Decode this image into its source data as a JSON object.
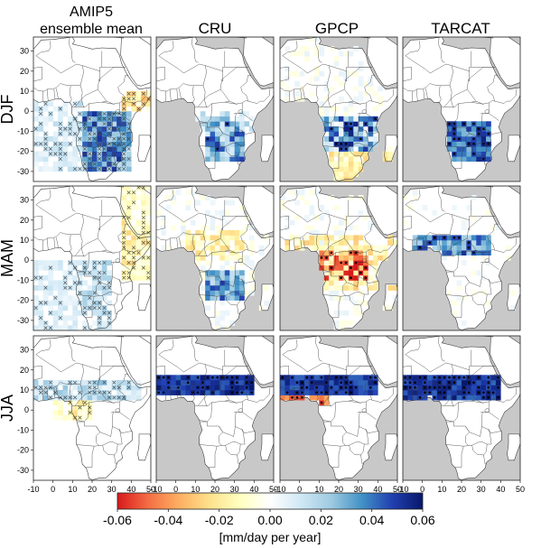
{
  "chart_data": {
    "type": "heatmap",
    "columns": [
      "AMIP5\nensemble mean",
      "CRU",
      "GPCP",
      "TARCAT"
    ],
    "column_titles": [
      {
        "line1": "AMIP5",
        "line2": "ensemble mean"
      },
      {
        "line1": "CRU",
        "line2": ""
      },
      {
        "line1": "GPCP",
        "line2": ""
      },
      {
        "line1": "TARCAT",
        "line2": ""
      }
    ],
    "rows": [
      "DJF",
      "MAM",
      "JJA"
    ],
    "x_ticks": [
      "-10",
      "0",
      "10",
      "20",
      "30",
      "40",
      "50"
    ],
    "y_ticks": [
      "30",
      "20",
      "10",
      "0",
      "-10",
      "-20",
      "-30"
    ],
    "xlim": [
      -10,
      50
    ],
    "ylim": [
      -35,
      37
    ],
    "colorbar": {
      "ticks": [
        "-0.06",
        "-0.04",
        "-0.02",
        "0.00",
        "0.02",
        "0.04",
        "0.06"
      ],
      "range": [
        -0.06,
        0.06
      ],
      "label": "[mm/day per year]",
      "colors": [
        "#d7191c",
        "#f46d43",
        "#fdae61",
        "#fee08b",
        "#ffffbf",
        "#ffffff",
        "#d0e8f5",
        "#9ecae1",
        "#4292c6",
        "#2140b0",
        "#08176b"
      ]
    },
    "ocean_color_observations": "#c8c8c8",
    "ocean_color_model": "#ffffff"
  }
}
